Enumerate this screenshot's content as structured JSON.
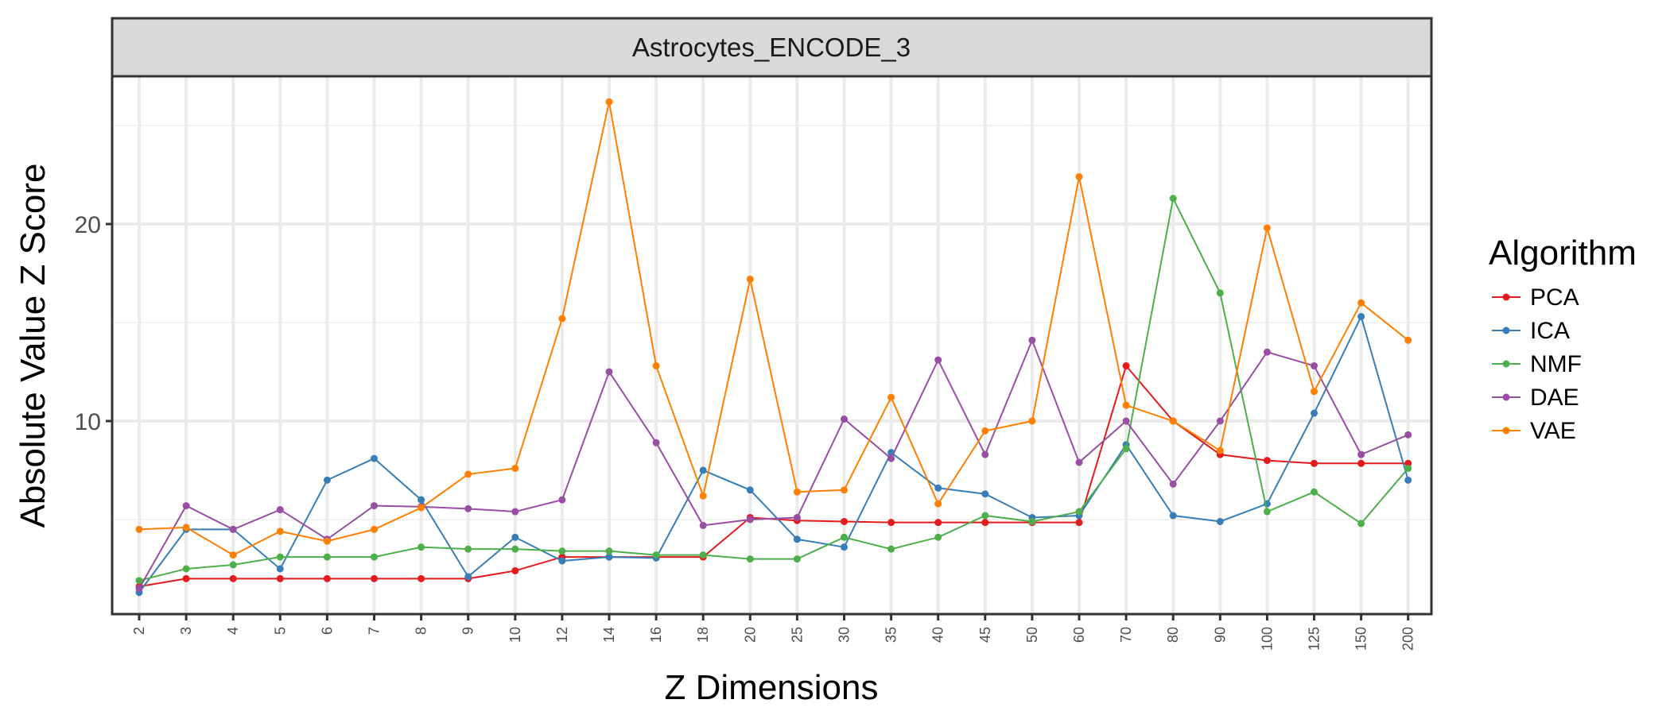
{
  "chart_data": {
    "type": "line",
    "title": "Astrocytes_ENCODE_3",
    "xlabel": "Z Dimensions",
    "ylabel": "Absolute Value Z Score",
    "categories": [
      "2",
      "3",
      "4",
      "5",
      "6",
      "7",
      "8",
      "9",
      "10",
      "12",
      "14",
      "16",
      "18",
      "20",
      "25",
      "30",
      "35",
      "40",
      "45",
      "50",
      "60",
      "70",
      "80",
      "90",
      "100",
      "125",
      "150",
      "200"
    ],
    "yticks": [
      10,
      20
    ],
    "ylim": [
      0.2,
      27.5
    ],
    "grid": true,
    "legend": {
      "title": "Algorithm",
      "position": "right"
    },
    "series": [
      {
        "name": "PCA",
        "color": "#E41A1C",
        "values": [
          1.6,
          2.0,
          2.0,
          2.0,
          2.0,
          2.0,
          2.0,
          2.0,
          2.4,
          3.1,
          3.1,
          3.1,
          3.1,
          5.1,
          4.95,
          4.9,
          4.85,
          4.85,
          4.85,
          4.85,
          4.85,
          12.8,
          10.0,
          8.3,
          8.0,
          7.85,
          7.85,
          7.85
        ]
      },
      {
        "name": "ICA",
        "color": "#377EB8",
        "values": [
          1.3,
          4.5,
          4.5,
          2.5,
          7.0,
          8.1,
          6.0,
          2.1,
          4.1,
          2.9,
          3.1,
          3.05,
          7.5,
          6.5,
          4.0,
          3.6,
          8.4,
          6.6,
          6.3,
          5.1,
          5.2,
          8.8,
          5.2,
          4.9,
          5.8,
          10.4,
          15.3,
          7.0
        ]
      },
      {
        "name": "NMF",
        "color": "#4DAF4A",
        "values": [
          1.9,
          2.5,
          2.7,
          3.1,
          3.1,
          3.1,
          3.6,
          3.5,
          3.5,
          3.4,
          3.4,
          3.2,
          3.2,
          3.0,
          3.0,
          4.1,
          3.5,
          4.1,
          5.2,
          4.9,
          5.4,
          8.6,
          21.3,
          16.5,
          5.4,
          6.4,
          4.8,
          7.6
        ]
      },
      {
        "name": "DAE",
        "color": "#984EA3",
        "values": [
          1.5,
          5.7,
          4.5,
          5.5,
          4.0,
          5.7,
          5.65,
          5.55,
          5.4,
          6.0,
          12.5,
          8.9,
          4.7,
          5.0,
          5.1,
          10.1,
          8.1,
          13.1,
          8.3,
          14.1,
          7.9,
          10.0,
          6.8,
          10.0,
          13.5,
          12.8,
          8.3,
          9.3
        ]
      },
      {
        "name": "VAE",
        "color": "#FF7F00",
        "values": [
          4.5,
          4.6,
          3.2,
          4.4,
          3.9,
          4.5,
          5.6,
          7.3,
          7.6,
          15.2,
          26.2,
          12.8,
          6.2,
          17.2,
          6.4,
          6.5,
          11.2,
          5.8,
          9.5,
          10.0,
          22.4,
          10.8,
          10.0,
          8.5,
          19.8,
          11.5,
          16.0,
          14.1
        ]
      }
    ]
  }
}
